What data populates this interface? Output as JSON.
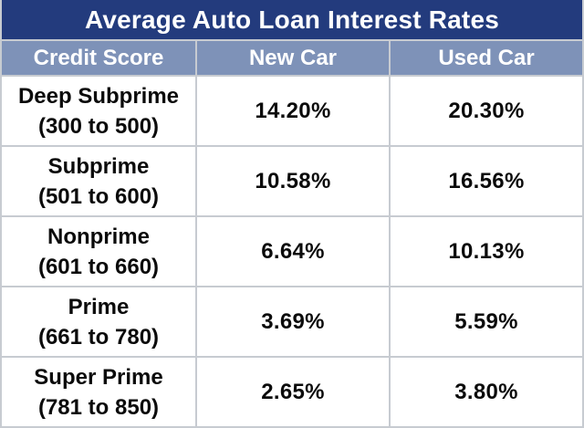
{
  "title": "Average Auto Loan Interest Rates",
  "columns": [
    "Credit Score",
    "New Car",
    "Used Car"
  ],
  "rows": [
    {
      "tier": "Deep Subprime",
      "range": "(300 to 500)",
      "new_car": "14.20%",
      "used_car": "20.30%"
    },
    {
      "tier": "Subprime",
      "range": "(501 to 600)",
      "new_car": "10.58%",
      "used_car": "16.56%"
    },
    {
      "tier": "Nonprime",
      "range": "(601 to 660)",
      "new_car": "6.64%",
      "used_car": "10.13%"
    },
    {
      "tier": "Prime",
      "range": "(661 to 780)",
      "new_car": "3.69%",
      "used_car": "5.59%"
    },
    {
      "tier": "Super Prime",
      "range": "(781 to 850)",
      "new_car": "2.65%",
      "used_car": "3.80%"
    }
  ],
  "colors": {
    "title_bg": "#233b7d",
    "header_bg": "#7e92b8",
    "grid_line": "#c7cbd1",
    "cell_bg": "#ffffff",
    "title_text": "#ffffff",
    "body_text": "#0b0b0b"
  },
  "chart_data": {
    "type": "table",
    "title": "Average Auto Loan Interest Rates",
    "columns": [
      "Credit Score",
      "New Car",
      "Used Car"
    ],
    "categories": [
      "Deep Subprime (300 to 500)",
      "Subprime (501 to 600)",
      "Nonprime (601 to 660)",
      "Prime (661 to 780)",
      "Super Prime (781 to 850)"
    ],
    "series": [
      {
        "name": "New Car",
        "values": [
          14.2,
          10.58,
          6.64,
          3.69,
          2.65
        ],
        "unit": "%"
      },
      {
        "name": "Used Car",
        "values": [
          20.3,
          16.56,
          10.13,
          5.59,
          3.8
        ],
        "unit": "%"
      }
    ],
    "cells": [
      [
        "Deep Subprime (300 to 500)",
        "14.20%",
        "20.30%"
      ],
      [
        "Subprime (501 to 600)",
        "10.58%",
        "16.56%"
      ],
      [
        "Nonprime (601 to 660)",
        "6.64%",
        "10.13%"
      ],
      [
        "Prime (661 to 780)",
        "3.69%",
        "5.59%"
      ],
      [
        "Super Prime (781 to 850)",
        "2.65%",
        "3.80%"
      ]
    ]
  }
}
